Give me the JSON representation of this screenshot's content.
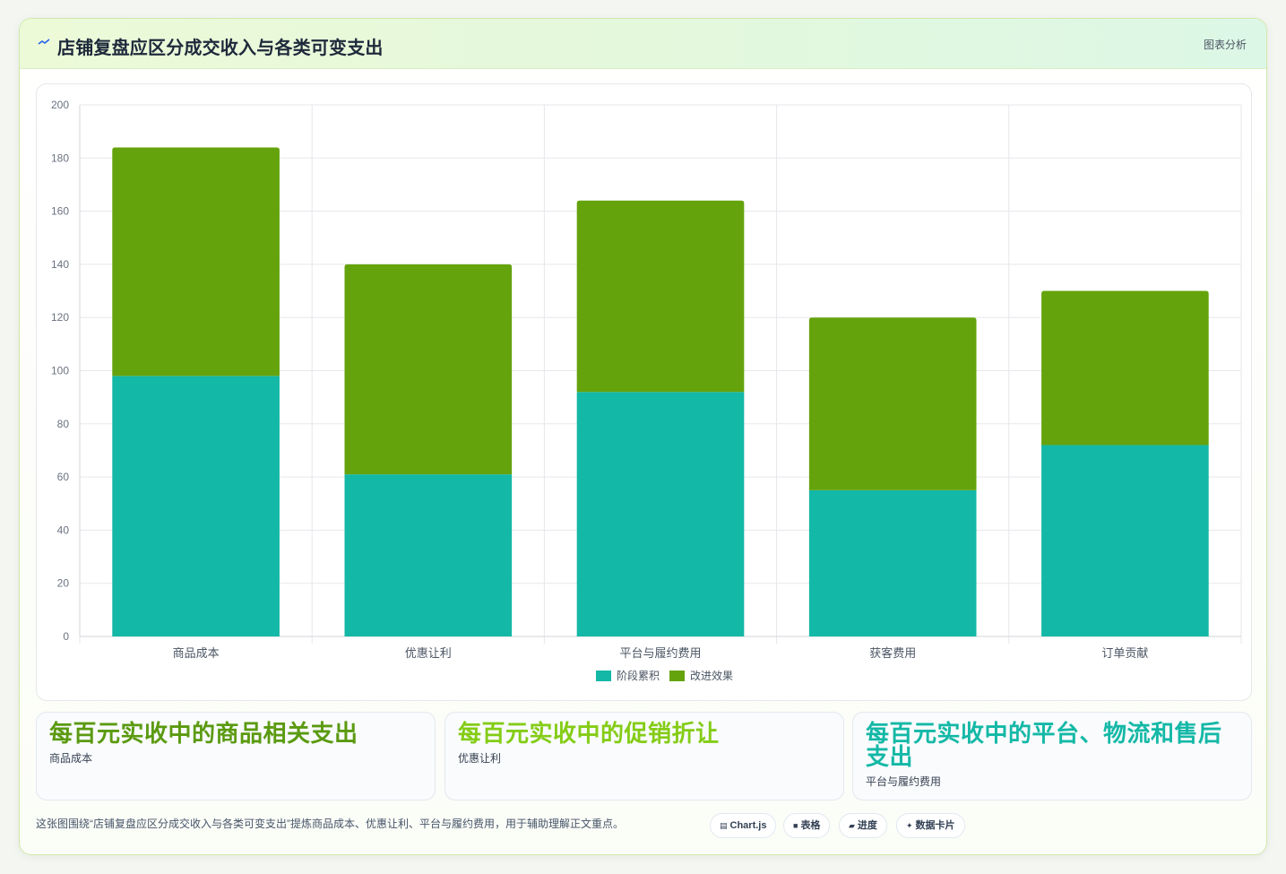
{
  "header": {
    "icon": "trend-line-icon",
    "title": "店铺复盘应区分成交收入与各类可变支出",
    "tag": "图表分析"
  },
  "chart_data": {
    "type": "bar",
    "stacked": true,
    "categories": [
      "商品成本",
      "优惠让利",
      "平台与履约费用",
      "获客费用",
      "订单贡献"
    ],
    "series": [
      {
        "name": "阶段累积",
        "color": "#14b8a6",
        "values": [
          98,
          61,
          92,
          55,
          72
        ]
      },
      {
        "name": "改进效果",
        "color": "#65a30d",
        "values": [
          86,
          79,
          72,
          65,
          58
        ]
      }
    ],
    "ylim": [
      0,
      200
    ],
    "yticks": [
      0,
      20,
      40,
      60,
      80,
      100,
      120,
      140,
      160,
      180,
      200
    ],
    "grid": true,
    "legend": "bottom"
  },
  "stats": [
    {
      "value": "每百元实收中的商品相关支出",
      "label": "商品成本",
      "color": "#5b9a10"
    },
    {
      "value": "每百元实收中的促销折让",
      "label": "优惠让利",
      "color": "#84cc16"
    },
    {
      "value": "每百元实收中的平台、物流和售后支出",
      "label": "平台与履约费用",
      "color": "#14b8a6"
    }
  ],
  "footer": {
    "text": "这张图围绕“店铺复盘应区分成交收入与各类可变支出”提炼商品成本、优惠让利、平台与履约费用，用于辅助理解正文重点。",
    "pills": [
      {
        "icon": "chart-icon",
        "glyph": "▤",
        "label": "Chart.js"
      },
      {
        "icon": "table-icon",
        "glyph": "■",
        "label": "表格"
      },
      {
        "icon": "progress-icon",
        "glyph": "▰",
        "label": "进度"
      },
      {
        "icon": "sparkle-icon",
        "glyph": "✦",
        "label": "数据卡片"
      }
    ]
  }
}
